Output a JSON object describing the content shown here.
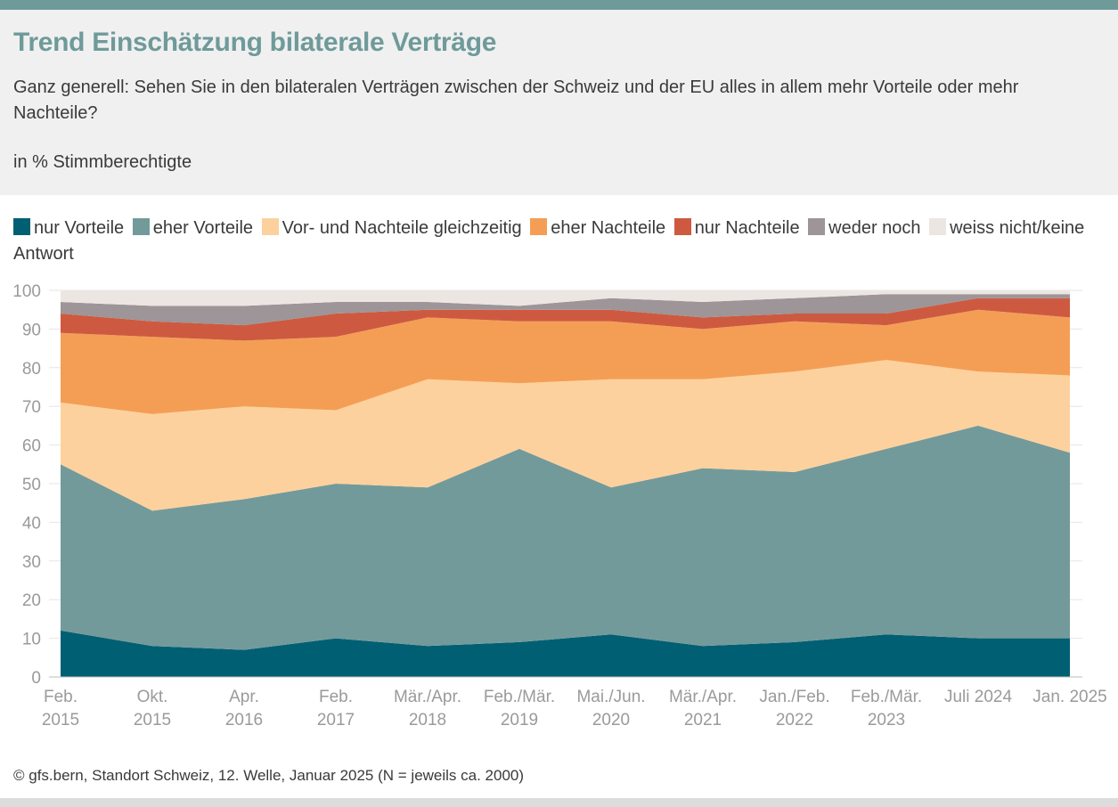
{
  "header": {
    "title": "Trend Einschätzung bilaterale Verträge",
    "question": "Ganz generell: Sehen Sie in den bilateralen Verträgen zwischen der Schweiz und der EU alles in allem mehr Vorteile oder mehr Nachteile?",
    "unit": "in % Stimmberechtigte"
  },
  "source": "© gfs.bern, Standort Schweiz, 12. Welle, Januar 2025 (N = jeweils ca. 2000)",
  "colors": {
    "topbar": "#6f9a9a",
    "header_bg": "#f0f0f0",
    "grid": "#e6e6e6",
    "axis_text": "#9a9a9a"
  },
  "chart_data": {
    "type": "area",
    "stacked": true,
    "categories": [
      "Feb.\n2015",
      "Okt.\n2015",
      "Apr.\n2016",
      "Feb.\n2017",
      "Mär./Apr.\n2018",
      "Feb./Mär.\n2019",
      "Mai./Jun.\n2020",
      "Mär./Apr.\n2021",
      "Jan./Feb.\n2022",
      "Feb./Mär.\n2023",
      "Juli 2024",
      "Jan. 2025"
    ],
    "ylim": [
      0,
      100
    ],
    "yticks": [
      0,
      10,
      20,
      30,
      40,
      50,
      60,
      70,
      80,
      90,
      100
    ],
    "grid": true,
    "legend_position": "top",
    "series": [
      {
        "name": "nur Vorteile",
        "color": "#005f73",
        "values": [
          12,
          8,
          7,
          10,
          8,
          9,
          11,
          8,
          9,
          11,
          10,
          10
        ]
      },
      {
        "name": "eher Vorteile",
        "color": "#739a9a",
        "values": [
          43,
          35,
          39,
          40,
          41,
          50,
          38,
          46,
          44,
          48,
          55,
          48
        ]
      },
      {
        "name": "Vor- und Nachteile gleichzeitig",
        "color": "#fdd19d",
        "values": [
          16,
          25,
          24,
          19,
          28,
          17,
          28,
          23,
          26,
          23,
          14,
          20
        ]
      },
      {
        "name": "eher Nachteile",
        "color": "#f49e55",
        "values": [
          18,
          20,
          17,
          19,
          16,
          16,
          15,
          13,
          13,
          9,
          16,
          15
        ]
      },
      {
        "name": "nur Nachteile",
        "color": "#cd5a40",
        "values": [
          5,
          4,
          4,
          6,
          2,
          3,
          3,
          3,
          2,
          3,
          3,
          5
        ]
      },
      {
        "name": "weder noch",
        "color": "#9d9598",
        "values": [
          3,
          4,
          5,
          3,
          2,
          1,
          3,
          4,
          4,
          5,
          1,
          1
        ]
      },
      {
        "name": "weiss nicht/keine Antwort",
        "color": "#ece6e2",
        "values": [
          3,
          4,
          4,
          3,
          3,
          4,
          2,
          3,
          2,
          1,
          1,
          1
        ]
      }
    ]
  }
}
